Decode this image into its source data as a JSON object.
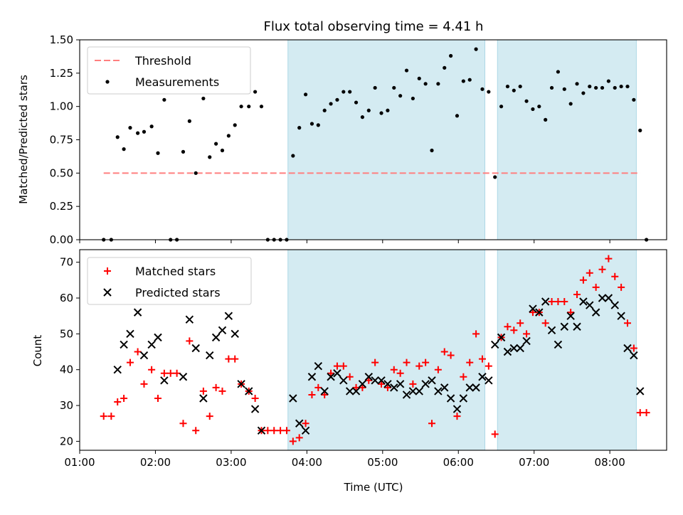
{
  "title": "Flux total observing time = 4.41 h",
  "colors": {
    "threshold": "#ff7f7f",
    "measurement": "#000000",
    "matched": "#ff0000",
    "predicted": "#000000",
    "shade": "#add8e6"
  },
  "chart_data": [
    {
      "type": "scatter",
      "panel": "top",
      "ylabel": "Matched/Predicted stars",
      "xlabel": "",
      "xlim": [
        "01:00",
        "08:45"
      ],
      "ylim": [
        0,
        1.5
      ],
      "yticks": [
        "0.00",
        "0.25",
        "0.50",
        "0.75",
        "1.00",
        "1.25",
        "1.50"
      ],
      "legend_position": "top-left",
      "shaded_intervals": [
        [
          "03:45",
          "06:21"
        ],
        [
          "06:31",
          "08:21"
        ]
      ],
      "threshold": {
        "name": "Threshold",
        "value": 0.5,
        "x_start": "01:19",
        "x_end": "08:24"
      },
      "series": [
        {
          "name": "Measurements",
          "points": [
            [
              "01:19",
              0.0
            ],
            [
              "01:25",
              0.0
            ],
            [
              "01:30",
              0.77
            ],
            [
              "01:35",
              0.68
            ],
            [
              "01:40",
              0.84
            ],
            [
              "01:46",
              0.8
            ],
            [
              "01:51",
              0.81
            ],
            [
              "01:57",
              0.85
            ],
            [
              "02:02",
              0.65
            ],
            [
              "02:07",
              1.05
            ],
            [
              "02:12",
              0.0
            ],
            [
              "02:17",
              0.0
            ],
            [
              "02:22",
              0.66
            ],
            [
              "02:27",
              0.89
            ],
            [
              "02:32",
              0.5
            ],
            [
              "02:38",
              1.06
            ],
            [
              "02:43",
              0.62
            ],
            [
              "02:48",
              0.72
            ],
            [
              "02:53",
              0.67
            ],
            [
              "02:58",
              0.78
            ],
            [
              "03:03",
              0.86
            ],
            [
              "03:08",
              1.0
            ],
            [
              "03:14",
              1.0
            ],
            [
              "03:19",
              1.11
            ],
            [
              "03:24",
              1.0
            ],
            [
              "03:29",
              0.0
            ],
            [
              "03:34",
              0.0
            ],
            [
              "03:39",
              0.0
            ],
            [
              "03:44",
              0.0
            ],
            [
              "03:49",
              0.63
            ],
            [
              "03:54",
              0.84
            ],
            [
              "03:59",
              1.09
            ],
            [
              "04:04",
              0.87
            ],
            [
              "04:09",
              0.86
            ],
            [
              "04:14",
              0.97
            ],
            [
              "04:19",
              1.02
            ],
            [
              "04:24",
              1.05
            ],
            [
              "04:29",
              1.11
            ],
            [
              "04:34",
              1.11
            ],
            [
              "04:39",
              1.03
            ],
            [
              "04:44",
              0.92
            ],
            [
              "04:49",
              0.97
            ],
            [
              "04:54",
              1.14
            ],
            [
              "04:59",
              0.95
            ],
            [
              "05:04",
              0.97
            ],
            [
              "05:09",
              1.14
            ],
            [
              "05:14",
              1.08
            ],
            [
              "05:19",
              1.27
            ],
            [
              "05:24",
              1.06
            ],
            [
              "05:29",
              1.21
            ],
            [
              "05:34",
              1.17
            ],
            [
              "05:39",
              0.67
            ],
            [
              "05:44",
              1.17
            ],
            [
              "05:49",
              1.29
            ],
            [
              "05:54",
              1.38
            ],
            [
              "05:59",
              0.93
            ],
            [
              "06:04",
              1.19
            ],
            [
              "06:09",
              1.2
            ],
            [
              "06:14",
              1.43
            ],
            [
              "06:19",
              1.13
            ],
            [
              "06:24",
              1.11
            ],
            [
              "06:29",
              0.47
            ],
            [
              "06:34",
              1.0
            ],
            [
              "06:39",
              1.15
            ],
            [
              "06:44",
              1.12
            ],
            [
              "06:49",
              1.15
            ],
            [
              "06:54",
              1.04
            ],
            [
              "06:59",
              0.98
            ],
            [
              "07:04",
              1.0
            ],
            [
              "07:09",
              0.9
            ],
            [
              "07:14",
              1.14
            ],
            [
              "07:19",
              1.26
            ],
            [
              "07:24",
              1.13
            ],
            [
              "07:29",
              1.02
            ],
            [
              "07:34",
              1.17
            ],
            [
              "07:39",
              1.1
            ],
            [
              "07:44",
              1.15
            ],
            [
              "07:49",
              1.14
            ],
            [
              "07:54",
              1.14
            ],
            [
              "07:59",
              1.19
            ],
            [
              "08:04",
              1.14
            ],
            [
              "08:09",
              1.15
            ],
            [
              "08:14",
              1.15
            ],
            [
              "08:19",
              1.05
            ],
            [
              "08:24",
              0.82
            ],
            [
              "08:29",
              0.0
            ]
          ]
        }
      ]
    },
    {
      "type": "scatter",
      "panel": "bottom",
      "ylabel": "Count",
      "xlabel": "Time (UTC)",
      "xlim": [
        "01:00",
        "08:45"
      ],
      "ylim": [
        17.5,
        73.5
      ],
      "yticks": [
        "20",
        "30",
        "40",
        "50",
        "60",
        "70"
      ],
      "xticks": [
        "01:00",
        "02:00",
        "03:00",
        "04:00",
        "05:00",
        "06:00",
        "07:00",
        "08:00"
      ],
      "legend_position": "top-left",
      "shaded_intervals": [
        [
          "03:45",
          "06:21"
        ],
        [
          "06:31",
          "08:21"
        ]
      ],
      "series": [
        {
          "name": "Matched stars",
          "marker": "plus",
          "points": [
            [
              "01:19",
              27
            ],
            [
              "01:25",
              27
            ],
            [
              "01:30",
              31
            ],
            [
              "01:35",
              32
            ],
            [
              "01:40",
              42
            ],
            [
              "01:46",
              45
            ],
            [
              "01:51",
              36
            ],
            [
              "01:57",
              40
            ],
            [
              "02:02",
              32
            ],
            [
              "02:07",
              39
            ],
            [
              "02:12",
              39
            ],
            [
              "02:17",
              39
            ],
            [
              "02:22",
              25
            ],
            [
              "02:27",
              48
            ],
            [
              "02:32",
              23
            ],
            [
              "02:38",
              34
            ],
            [
              "02:43",
              27
            ],
            [
              "02:48",
              35
            ],
            [
              "02:53",
              34
            ],
            [
              "02:58",
              43
            ],
            [
              "03:03",
              43
            ],
            [
              "03:08",
              36
            ],
            [
              "03:14",
              34
            ],
            [
              "03:19",
              32
            ],
            [
              "03:24",
              23
            ],
            [
              "03:29",
              23
            ],
            [
              "03:34",
              23
            ],
            [
              "03:39",
              23
            ],
            [
              "03:44",
              23
            ],
            [
              "03:49",
              20
            ],
            [
              "03:54",
              21
            ],
            [
              "03:59",
              25
            ],
            [
              "04:04",
              33
            ],
            [
              "04:09",
              35
            ],
            [
              "04:14",
              33
            ],
            [
              "04:19",
              39
            ],
            [
              "04:24",
              41
            ],
            [
              "04:29",
              41
            ],
            [
              "04:34",
              38
            ],
            [
              "04:39",
              35
            ],
            [
              "04:44",
              35
            ],
            [
              "04:49",
              37
            ],
            [
              "04:54",
              42
            ],
            [
              "04:59",
              36
            ],
            [
              "05:04",
              35
            ],
            [
              "05:09",
              40
            ],
            [
              "05:14",
              39
            ],
            [
              "05:19",
              42
            ],
            [
              "05:24",
              36
            ],
            [
              "05:29",
              41
            ],
            [
              "05:34",
              42
            ],
            [
              "05:39",
              25
            ],
            [
              "05:44",
              40
            ],
            [
              "05:49",
              45
            ],
            [
              "05:54",
              44
            ],
            [
              "05:59",
              27
            ],
            [
              "06:04",
              38
            ],
            [
              "06:09",
              42
            ],
            [
              "06:14",
              50
            ],
            [
              "06:19",
              43
            ],
            [
              "06:24",
              41
            ],
            [
              "06:29",
              22
            ],
            [
              "06:34",
              49
            ],
            [
              "06:39",
              52
            ],
            [
              "06:44",
              51
            ],
            [
              "06:49",
              53
            ],
            [
              "06:54",
              50
            ],
            [
              "06:59",
              56
            ],
            [
              "07:04",
              56
            ],
            [
              "07:09",
              53
            ],
            [
              "07:14",
              59
            ],
            [
              "07:19",
              59
            ],
            [
              "07:24",
              59
            ],
            [
              "07:29",
              56
            ],
            [
              "07:34",
              61
            ],
            [
              "07:39",
              65
            ],
            [
              "07:44",
              67
            ],
            [
              "07:49",
              63
            ],
            [
              "07:54",
              68
            ],
            [
              "07:59",
              71
            ],
            [
              "08:04",
              66
            ],
            [
              "08:09",
              63
            ],
            [
              "08:14",
              53
            ],
            [
              "08:19",
              46
            ],
            [
              "08:24",
              28
            ],
            [
              "08:29",
              28
            ]
          ]
        },
        {
          "name": "Predicted stars",
          "marker": "x",
          "points": [
            [
              "01:30",
              40
            ],
            [
              "01:35",
              47
            ],
            [
              "01:40",
              50
            ],
            [
              "01:46",
              56
            ],
            [
              "01:51",
              44
            ],
            [
              "01:57",
              47
            ],
            [
              "02:02",
              49
            ],
            [
              "02:07",
              37
            ],
            [
              "02:22",
              38
            ],
            [
              "02:27",
              54
            ],
            [
              "02:32",
              46
            ],
            [
              "02:38",
              32
            ],
            [
              "02:43",
              44
            ],
            [
              "02:48",
              49
            ],
            [
              "02:53",
              51
            ],
            [
              "02:58",
              55
            ],
            [
              "03:03",
              50
            ],
            [
              "03:08",
              36
            ],
            [
              "03:14",
              34
            ],
            [
              "03:19",
              29
            ],
            [
              "03:24",
              23
            ],
            [
              "03:49",
              32
            ],
            [
              "03:54",
              25
            ],
            [
              "03:59",
              23
            ],
            [
              "04:04",
              38
            ],
            [
              "04:09",
              41
            ],
            [
              "04:14",
              34
            ],
            [
              "04:19",
              38
            ],
            [
              "04:24",
              39
            ],
            [
              "04:29",
              37
            ],
            [
              "04:34",
              34
            ],
            [
              "04:39",
              34
            ],
            [
              "04:44",
              36
            ],
            [
              "04:49",
              38
            ],
            [
              "04:54",
              37
            ],
            [
              "04:59",
              37
            ],
            [
              "05:04",
              36
            ],
            [
              "05:09",
              35
            ],
            [
              "05:14",
              36
            ],
            [
              "05:19",
              33
            ],
            [
              "05:24",
              34
            ],
            [
              "05:29",
              34
            ],
            [
              "05:34",
              36
            ],
            [
              "05:39",
              37
            ],
            [
              "05:44",
              34
            ],
            [
              "05:49",
              35
            ],
            [
              "05:54",
              32
            ],
            [
              "05:59",
              29
            ],
            [
              "06:04",
              32
            ],
            [
              "06:09",
              35
            ],
            [
              "06:14",
              35
            ],
            [
              "06:19",
              38
            ],
            [
              "06:24",
              37
            ],
            [
              "06:29",
              47
            ],
            [
              "06:34",
              49
            ],
            [
              "06:39",
              45
            ],
            [
              "06:44",
              46
            ],
            [
              "06:49",
              46
            ],
            [
              "06:54",
              48
            ],
            [
              "06:59",
              57
            ],
            [
              "07:04",
              56
            ],
            [
              "07:09",
              59
            ],
            [
              "07:14",
              51
            ],
            [
              "07:19",
              47
            ],
            [
              "07:24",
              52
            ],
            [
              "07:29",
              55
            ],
            [
              "07:34",
              52
            ],
            [
              "07:39",
              59
            ],
            [
              "07:44",
              58
            ],
            [
              "07:49",
              56
            ],
            [
              "07:54",
              60
            ],
            [
              "07:59",
              60
            ],
            [
              "08:04",
              58
            ],
            [
              "08:09",
              55
            ],
            [
              "08:14",
              46
            ],
            [
              "08:19",
              44
            ],
            [
              "08:24",
              34
            ]
          ]
        }
      ]
    }
  ]
}
